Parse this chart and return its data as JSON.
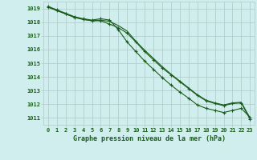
{
  "title": "Graphe pression niveau de la mer (hPa)",
  "xlabel_hours": [
    0,
    1,
    2,
    3,
    4,
    5,
    6,
    7,
    8,
    9,
    10,
    11,
    12,
    13,
    14,
    15,
    16,
    17,
    18,
    19,
    20,
    21,
    22,
    23
  ],
  "ylim": [
    1010.5,
    1019.5
  ],
  "yticks": [
    1011,
    1012,
    1013,
    1014,
    1015,
    1016,
    1017,
    1018,
    1019
  ],
  "background_color": "#d0eeee",
  "grid_color": "#b0c8c8",
  "line_color": "#1a5c1a",
  "series": [
    [
      1019.1,
      1018.85,
      1018.6,
      1018.35,
      1018.2,
      1018.1,
      1018.1,
      1017.85,
      1017.6,
      1017.2,
      1016.55,
      1015.85,
      1015.25,
      1014.65,
      1014.15,
      1013.65,
      1013.15,
      1012.65,
      1012.25,
      1012.05,
      1011.9,
      1012.05,
      1012.1,
      1010.9
    ],
    [
      1019.1,
      1018.85,
      1018.6,
      1018.35,
      1018.2,
      1018.1,
      1018.15,
      1018.05,
      1017.75,
      1017.35,
      1016.6,
      1015.95,
      1015.35,
      1014.75,
      1014.2,
      1013.7,
      1013.2,
      1012.7,
      1012.3,
      1012.1,
      1011.95,
      1012.1,
      1012.15,
      1011.0
    ],
    [
      1019.15,
      1018.9,
      1018.65,
      1018.4,
      1018.25,
      1018.15,
      1018.25,
      1018.15,
      1017.45,
      1016.55,
      1015.85,
      1015.15,
      1014.55,
      1013.95,
      1013.4,
      1012.9,
      1012.45,
      1011.95,
      1011.7,
      1011.55,
      1011.4,
      1011.55,
      1011.7,
      1011.05
    ]
  ],
  "markers_series": [
    0,
    2
  ],
  "marker_indices": [
    0,
    1,
    2,
    3,
    4,
    5,
    6,
    7,
    8,
    9,
    10,
    11,
    12,
    13,
    14,
    15,
    16,
    17,
    18,
    19,
    20,
    21,
    22,
    23
  ]
}
